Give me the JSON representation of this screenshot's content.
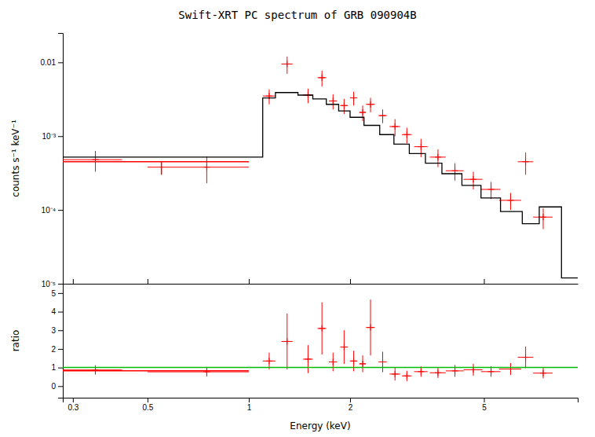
{
  "chart_data": [
    {
      "type": "scatter",
      "title": "Swift-XRT PC spectrum of GRB 090904B",
      "ylabel": "counts s⁻¹ keV⁻¹",
      "log": true,
      "xlim": [
        0.28,
        9.5
      ],
      "ylim": [
        1e-05,
        0.025
      ],
      "xticks": [
        0.3,
        0.5,
        1.0,
        2.0,
        5.0
      ],
      "yticks": [
        {
          "value": 1e-05,
          "label": "10⁻⁵"
        },
        {
          "value": 0.0001,
          "label": "10⁻⁴"
        },
        {
          "value": 0.001,
          "label": "10⁻³"
        },
        0.01
      ],
      "tick_labels": "y",
      "series": [
        {
          "type": "scatter",
          "marker": "plus",
          "color": "#ff0000",
          "x": [
            0.35,
            0.75,
            1.15,
            1.3,
            1.5,
            1.65,
            1.78,
            1.92,
            2.05,
            2.18,
            2.3,
            2.5,
            2.72,
            2.95,
            3.25,
            3.65,
            4.1,
            4.65,
            5.25,
            6.0,
            6.65,
            7.5
          ],
          "values": [
            0.00048,
            0.00038,
            0.0035,
            0.0095,
            0.0036,
            0.0062,
            0.003,
            0.0026,
            0.0033,
            0.0021,
            0.0027,
            0.0019,
            0.00135,
            0.00105,
            0.00072,
            0.00052,
            0.00034,
            0.00026,
            0.00019,
            0.000135,
            0.00045,
            8e-05
          ],
          "xerr_lo": [
            0.07,
            0.25,
            0.05,
            0.05,
            0.05,
            0.05,
            0.05,
            0.05,
            0.05,
            0.05,
            0.07,
            0.07,
            0.1,
            0.1,
            0.15,
            0.2,
            0.25,
            0.3,
            0.35,
            0.45,
            0.35,
            0.5
          ],
          "xerr_hi": [
            0.07,
            0.25,
            0.05,
            0.05,
            0.05,
            0.05,
            0.05,
            0.05,
            0.05,
            0.05,
            0.07,
            0.07,
            0.1,
            0.1,
            0.15,
            0.2,
            0.25,
            0.3,
            0.35,
            0.45,
            0.35,
            0.5
          ],
          "yerr_lo": [
            0.00015,
            0.00015,
            0.0008,
            0.0025,
            0.0008,
            0.0015,
            0.0007,
            0.0006,
            0.0007,
            0.0005,
            0.0006,
            0.0004,
            0.00035,
            0.00025,
            0.0002,
            0.00014,
            9e-05,
            7e-05,
            5e-05,
            3.5e-05,
            0.00015,
            2.5e-05
          ],
          "yerr_hi": [
            0.00015,
            0.00015,
            0.0008,
            0.0025,
            0.0008,
            0.0015,
            0.0007,
            0.0006,
            0.0007,
            0.0005,
            0.0006,
            0.0004,
            0.00035,
            0.00025,
            0.0002,
            0.00014,
            9e-05,
            7e-05,
            5e-05,
            3.5e-05,
            0.00015,
            2.5e-05
          ]
        },
        {
          "type": "line",
          "color": "#000000",
          "x": [
            0.28,
            1.1,
            1.1,
            1.2,
            1.2,
            1.4,
            1.4,
            1.55,
            1.55,
            1.7,
            1.7,
            1.85,
            1.85,
            2.0,
            2.0,
            2.2,
            2.2,
            2.45,
            2.45,
            2.7,
            2.7,
            3.0,
            3.0,
            3.35,
            3.35,
            3.75,
            3.75,
            4.3,
            4.3,
            4.9,
            4.9,
            5.6,
            5.6,
            6.5,
            6.5,
            7.3,
            7.3,
            8.5,
            8.5,
            9.5
          ],
          "values": [
            0.00052,
            0.00052,
            0.0033,
            0.0033,
            0.0039,
            0.0039,
            0.0036,
            0.0036,
            0.0032,
            0.0032,
            0.0027,
            0.0027,
            0.0022,
            0.0022,
            0.0018,
            0.0018,
            0.0014,
            0.0014,
            0.00105,
            0.00105,
            0.00078,
            0.00078,
            0.00058,
            0.00058,
            0.00043,
            0.00043,
            0.00031,
            0.00031,
            0.000215,
            0.000215,
            0.000145,
            0.000145,
            9.5e-05,
            9.5e-05,
            6.5e-05,
            6.5e-05,
            0.00011,
            0.00011,
            1.2e-05,
            1.2e-05
          ]
        },
        {
          "type": "scatter",
          "marker": "none",
          "color": "#ff0000",
          "x": [
            0.55
          ],
          "values": [
            0.00045
          ],
          "xerr_lo": [
            0.27
          ],
          "xerr_hi": [
            0.45
          ],
          "yerr_lo": [
            0.00015
          ],
          "yerr_hi": [
            0.0
          ]
        }
      ]
    },
    {
      "type": "scatter",
      "xlabel": "Energy (keV)",
      "ylabel": "ratio",
      "log": "x",
      "xlim": [
        0.28,
        9.5
      ],
      "ylim": [
        -0.62,
        5.5
      ],
      "xticks": [
        0.3,
        0.5,
        1.0,
        2.0,
        5.0
      ],
      "yticks": [
        0,
        1,
        2,
        3,
        4,
        5
      ],
      "series": [
        {
          "type": "scatter",
          "marker": "plus",
          "color": "#ff0000",
          "x": [
            0.35,
            0.75,
            1.15,
            1.3,
            1.5,
            1.65,
            1.78,
            1.92,
            2.05,
            2.18,
            2.3,
            2.5,
            2.72,
            2.95,
            3.25,
            3.65,
            4.1,
            4.65,
            5.25,
            6.0,
            6.65,
            7.5
          ],
          "values": [
            0.87,
            0.77,
            1.35,
            2.4,
            1.45,
            3.1,
            1.3,
            2.1,
            1.35,
            1.2,
            3.15,
            1.3,
            0.65,
            0.55,
            0.78,
            0.72,
            0.82,
            0.88,
            0.78,
            0.92,
            1.55,
            0.7
          ],
          "xerr_lo": [
            0.07,
            0.25,
            0.05,
            0.05,
            0.05,
            0.05,
            0.05,
            0.05,
            0.05,
            0.05,
            0.07,
            0.07,
            0.1,
            0.1,
            0.15,
            0.2,
            0.25,
            0.3,
            0.35,
            0.45,
            0.35,
            0.5
          ],
          "xerr_hi": [
            0.07,
            0.25,
            0.05,
            0.05,
            0.05,
            0.05,
            0.05,
            0.05,
            0.05,
            0.05,
            0.07,
            0.07,
            0.1,
            0.1,
            0.15,
            0.2,
            0.25,
            0.3,
            0.35,
            0.45,
            0.35,
            0.5
          ],
          "yerr_lo": [
            0.25,
            0.25,
            0.45,
            1.5,
            0.75,
            1.4,
            0.5,
            0.9,
            0.55,
            0.45,
            1.5,
            0.55,
            0.35,
            0.28,
            0.28,
            0.28,
            0.32,
            0.32,
            0.28,
            0.32,
            0.58,
            0.28
          ],
          "yerr_hi": [
            0.25,
            0.25,
            0.45,
            1.5,
            0.75,
            1.4,
            0.5,
            0.9,
            0.55,
            0.45,
            1.5,
            0.55,
            0.35,
            0.28,
            0.28,
            0.28,
            0.32,
            0.32,
            0.28,
            0.32,
            0.58,
            0.28
          ]
        },
        {
          "type": "hline",
          "color": "#00bb00",
          "values": [
            1.0
          ]
        },
        {
          "type": "scatter",
          "marker": "none",
          "color": "#ff0000",
          "x": [
            0.55
          ],
          "values": [
            0.83
          ],
          "xerr_lo": [
            0.27
          ],
          "xerr_hi": [
            0.45
          ]
        }
      ]
    }
  ]
}
